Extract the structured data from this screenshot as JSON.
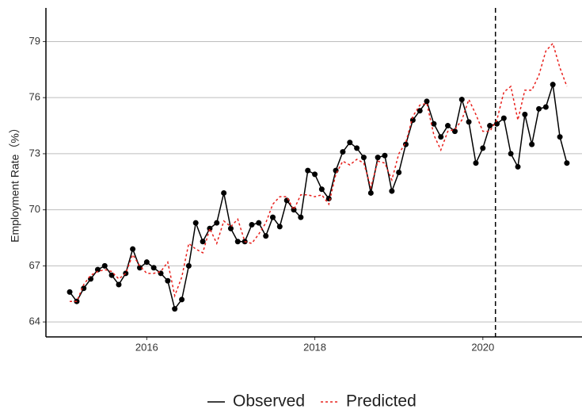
{
  "chart_data": {
    "type": "line",
    "y_label": "Employment Rate（%）",
    "x": [
      2015.083,
      2015.167,
      2015.25,
      2015.333,
      2015.417,
      2015.5,
      2015.583,
      2015.667,
      2015.75,
      2015.833,
      2015.917,
      2016,
      2016.083,
      2016.167,
      2016.25,
      2016.333,
      2016.417,
      2016.5,
      2016.583,
      2016.667,
      2016.75,
      2016.833,
      2016.917,
      2017,
      2017.083,
      2017.167,
      2017.25,
      2017.333,
      2017.417,
      2017.5,
      2017.583,
      2017.667,
      2017.75,
      2017.833,
      2017.917,
      2018,
      2018.083,
      2018.167,
      2018.25,
      2018.333,
      2018.417,
      2018.5,
      2018.583,
      2018.667,
      2018.75,
      2018.833,
      2018.917,
      2019,
      2019.083,
      2019.167,
      2019.25,
      2019.333,
      2019.417,
      2019.5,
      2019.583,
      2019.667,
      2019.75,
      2019.833,
      2019.917,
      2020,
      2020.083,
      2020.167,
      2020.25,
      2020.333,
      2020.417,
      2020.5,
      2020.583,
      2020.667,
      2020.75,
      2020.833,
      2020.917,
      2021
    ],
    "series": [
      {
        "name": "Observed",
        "color": "#000000",
        "dash": false,
        "markers": true,
        "values": [
          65.6,
          65.1,
          65.8,
          66.3,
          66.8,
          67.0,
          66.5,
          66.0,
          66.6,
          67.9,
          66.9,
          67.2,
          66.9,
          66.6,
          66.2,
          64.7,
          65.2,
          67.0,
          69.3,
          68.3,
          69.0,
          69.3,
          70.9,
          69.0,
          68.3,
          68.3,
          69.2,
          69.3,
          68.6,
          69.6,
          69.1,
          70.5,
          70.0,
          69.6,
          72.1,
          71.9,
          71.1,
          70.6,
          72.1,
          73.1,
          73.6,
          73.3,
          72.8,
          70.9,
          72.8,
          72.9,
          71.0,
          72.0,
          73.5,
          74.8,
          75.3,
          75.8,
          74.6,
          73.9,
          74.5,
          74.2,
          75.9,
          74.7,
          72.5,
          73.3,
          74.5,
          74.6,
          74.9,
          73.0,
          72.3,
          75.1,
          73.5,
          75.4,
          75.5,
          76.7,
          73.9,
          72.5
        ]
      },
      {
        "name": "Predicted",
        "color": "#e8201c",
        "dash": true,
        "markers": false,
        "values": [
          65.1,
          65.1,
          66.0,
          66.5,
          66.7,
          66.8,
          66.7,
          66.3,
          66.6,
          67.6,
          67.0,
          66.6,
          66.6,
          66.7,
          67.2,
          65.4,
          66.4,
          68.2,
          67.9,
          67.7,
          69.0,
          68.2,
          69.4,
          69.1,
          69.5,
          68.3,
          68.2,
          68.7,
          69.3,
          70.3,
          70.7,
          70.7,
          70.0,
          70.8,
          70.8,
          70.7,
          70.8,
          70.3,
          71.9,
          72.6,
          72.4,
          72.7,
          72.5,
          71.2,
          72.6,
          72.5,
          71.6,
          73.0,
          73.6,
          75.0,
          75.6,
          75.7,
          74.0,
          73.2,
          74.2,
          74.3,
          74.8,
          75.9,
          75.1,
          74.2,
          74.2,
          74.8,
          76.3,
          76.6,
          74.8,
          76.4,
          76.4,
          77.2,
          78.5,
          78.9,
          77.6,
          76.6
        ]
      }
    ],
    "xlim": [
      2014.8,
      2021.18
    ],
    "xticks": [
      2016,
      2018,
      2020
    ],
    "ylim": [
      63.2,
      80.8
    ],
    "yticks": [
      64,
      67,
      70,
      73,
      76,
      79
    ],
    "vline_x": 2020.15,
    "grid": "horizontal",
    "legend": "bottom"
  }
}
